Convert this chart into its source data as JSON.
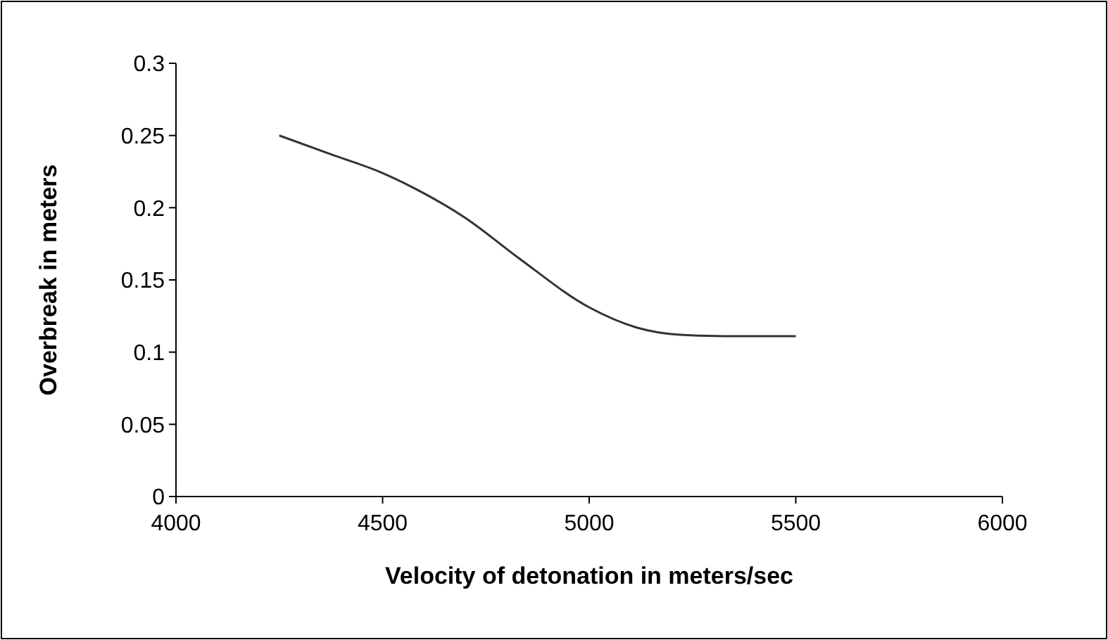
{
  "chart_data": {
    "type": "line",
    "xlabel": "Velocity of detonation in meters/sec",
    "ylabel": "Overbreak in meters",
    "x": [
      4250,
      4375,
      4500,
      4580,
      4700,
      4830,
      5000,
      5115,
      5220,
      5350,
      5500
    ],
    "series": [
      {
        "color": "#333333",
        "values": [
          0.25,
          0.237,
          0.224,
          0.213,
          0.193,
          0.165,
          0.131,
          0.117,
          0.112,
          0.111,
          0.111
        ]
      }
    ],
    "xlim": [
      4000,
      6000
    ],
    "xticks": [
      4000,
      4500,
      5000,
      5500,
      6000
    ],
    "ylim": [
      0,
      0.3
    ],
    "yticks": [
      0,
      0.05,
      0.1,
      0.15,
      0.2,
      0.25,
      0.3
    ],
    "grid": false,
    "marker": "none",
    "line_style": "solid"
  }
}
